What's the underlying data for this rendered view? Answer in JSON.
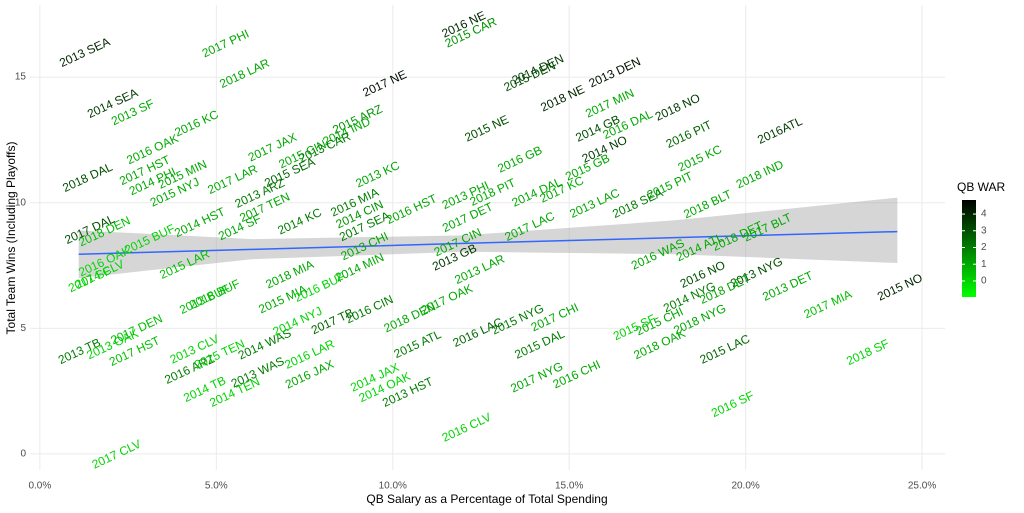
{
  "chart_data": {
    "type": "scatter",
    "xlabel": "QB Salary as a Percentage of Total Spending",
    "ylabel": "Total Team Wins (Including Playoffs)",
    "xlim": [
      -0.28,
      25.65
    ],
    "ylim": [
      -0.64,
      17.87
    ],
    "xticks": [
      {
        "value": 0,
        "label": "0.0%"
      },
      {
        "value": 5,
        "label": "5.0%"
      },
      {
        "value": 10,
        "label": "10.0%"
      },
      {
        "value": 15,
        "label": "15.0%"
      },
      {
        "value": 20,
        "label": "20.0%"
      },
      {
        "value": 25,
        "label": "25.0%"
      }
    ],
    "yticks": [
      0,
      5,
      10,
      15
    ],
    "grid": true,
    "labels": [
      "2013 SEA",
      "2014 SEA",
      "2013 SF",
      "2017 PHI",
      "2018 LAR",
      "2016 NE",
      "2015 CAR",
      "2017 NE",
      "2015 DEN",
      "2014 DEN",
      "2013 DEN",
      "2018 NE",
      "2017 MIN",
      "2018 NO",
      "2015 NE",
      "2014 GB",
      "2016 DAL",
      "2016 PIT",
      "2016ATL",
      "2015 ARZ",
      "2014 IND",
      "2016 KC",
      "2016 OAK",
      "2017 HST",
      "2015 MIN",
      "2014 PHI",
      "2018 DAL",
      "2015 NYJ",
      "2017 JAX",
      "2015 CIN",
      "2017 LAR",
      "2015 SEA",
      "2013 CAR",
      "2013 ARZ",
      "2013 KC",
      "2017 TEN",
      "2016 MIA",
      "2016 HST",
      "2013 PHI",
      "2016 GB",
      "2014 DAL",
      "2018 PIT",
      "2015 GB",
      "2017 KC",
      "2013 LAC",
      "2015 PIT",
      "2015 KC",
      "2018 IND",
      "2018 BLT",
      "2018 SEA",
      "2017 DET",
      "2017 SEA",
      "2017 DAL",
      "2018 DEN",
      "2015 BUF",
      "2014 HST",
      "2014 SF",
      "2014 KC",
      "2014 CIN",
      "2013 CHI",
      "2013 GB",
      "2017 CIN",
      "2017 LAC",
      "2016 WAS",
      "2018 DET",
      "2017 BLT",
      "2014 ATL",
      "2016 OAK",
      "2014 CLV",
      "2017 SF",
      "2015 LAR",
      "2014 MIN",
      "2018 MIA",
      "2018 BUF",
      "2013 BUF",
      "2015 MIA",
      "2016 BUF",
      "2013 LAR",
      "2013 NYG",
      "2016 NO",
      "2015 NO",
      "2013 DET",
      "2017 MIA",
      "2018 SF",
      "2015 LAC",
      "2016 SF",
      "2018 DET",
      "2014 NYG",
      "2018 NYG",
      "2015 CHI",
      "2018 OAK",
      "2015 SF",
      "2017 TB",
      "2016 CIN",
      "2018 DEN",
      "2017 OAK",
      "2016 LAC",
      "2015 NYG",
      "2017 CHI",
      "2015 DAL",
      "2016 CHI",
      "2017 NYG",
      "2013 HST",
      "2016 CLV",
      "2017 CLV",
      "2013 TB",
      "2013 OAK",
      "2017 DEN",
      "2017 HST",
      "2013 CLV",
      "2016 ARZ",
      "2014 TB",
      "2014 TEN",
      "2013 WAS",
      "2016 LAR",
      "2016 JAX",
      "2014 WAS",
      "2015 TEN",
      "2014 NYJ",
      "2014 JAX",
      "2015 ATL",
      "2014 OAK",
      "2014 NO"
    ],
    "x": [
      1.28,
      2.07,
      2.64,
      5.27,
      5.81,
      12.02,
      12.22,
      9.78,
      13.89,
      14.12,
      16.3,
      14.82,
      16.16,
      18.08,
      12.67,
      15.82,
      16.67,
      18.4,
      20.98,
      9.01,
      8.7,
      4.45,
      3.2,
      2.98,
      4.05,
      3.2,
      1.36,
      3.83,
      6.6,
      7.45,
      5.47,
      7.09,
      8.08,
      6.24,
      9.58,
      6.38,
      8.93,
      10.54,
      12.07,
      13.61,
      14.09,
      12.84,
      15.53,
      14.8,
      15.73,
      17.86,
      18.71,
      20.41,
      18.93,
      16.95,
      12.13,
      9.21,
      1.42,
      1.84,
      3.12,
      4.54,
      5.67,
      7.37,
      9.07,
      9.21,
      11.76,
      11.85,
      13.89,
      17.52,
      19.78,
      20.63,
      18.71,
      1.84,
      1.7,
      1.42,
      4.11,
      9.07,
      7.09,
      4.96,
      4.68,
      6.89,
      7.94,
      12.47,
      20.32,
      18.79,
      24.38,
      21.2,
      22.34,
      23.47,
      19.42,
      19.64,
      19.42,
      18.42,
      18.71,
      17.57,
      17.57,
      16.86,
      8.3,
      9.35,
      10.49,
      11.54,
      12.42,
      13.55,
      14.6,
      14.17,
      15.22,
      14.09,
      10.43,
      12.1,
      2.18,
      1.13,
      2.07,
      2.75,
      2.69,
      4.39,
      4.25,
      4.68,
      5.53,
      6.18,
      7.65,
      7.65,
      6.38,
      5.1,
      7.31,
      9.5,
      10.71,
      9.78,
      16.01
    ],
    "y": [
      15.96,
      13.93,
      13.57,
      16.31,
      15.12,
      17.07,
      16.75,
      14.72,
      15.0,
      15.28,
      15.16,
      14.13,
      13.93,
      13.77,
      12.93,
      12.93,
      13.09,
      12.69,
      12.85,
      13.29,
      12.81,
      13.13,
      12.1,
      11.26,
      11.1,
      10.82,
      10.98,
      10.39,
      12.18,
      11.9,
      10.9,
      11.18,
      12.18,
      10.35,
      11.1,
      9.79,
      9.99,
      9.71,
      10.27,
      11.7,
      10.39,
      10.39,
      11.38,
      10.5,
      9.95,
      10.66,
      11.74,
      11.1,
      9.91,
      9.95,
      9.39,
      9.03,
      8.91,
      8.83,
      8.52,
      9.19,
      8.99,
      9.23,
      9.51,
      8.24,
      7.8,
      8.4,
      9.03,
      7.92,
      8.64,
      8.99,
      8.2,
      7.64,
      7.12,
      6.92,
      7.52,
      7.4,
      7.12,
      6.33,
      6.13,
      6.13,
      6.61,
      7.32,
      7.2,
      7.12,
      6.61,
      6.65,
      5.93,
      4.02,
      4.14,
      1.95,
      6.53,
      6.21,
      5.33,
      5.25,
      4.34,
      5.01,
      5.25,
      5.73,
      5.41,
      6.13,
      4.81,
      5.33,
      5.41,
      4.34,
      3.14,
      3.02,
      2.43,
      1.03,
      -0.04,
      4.06,
      4.34,
      4.93,
      4.06,
      4.14,
      3.34,
      2.55,
      2.43,
      3.22,
      3.94,
      3.14,
      4.34,
      3.94,
      5.25,
      3.02,
      4.34,
      2.63,
      12.1
    ],
    "color_values": [
      4,
      3.5,
      1,
      1,
      1,
      4,
      1.5,
      4.5,
      3,
      3.5,
      4.5,
      4,
      1,
      3.5,
      3,
      3,
      1,
      2.5,
      3.5,
      1.5,
      1,
      1,
      1,
      1,
      1,
      1,
      3,
      1,
      1,
      1,
      1,
      2.5,
      2,
      2,
      1,
      1,
      2,
      1,
      1,
      1,
      1,
      1,
      1,
      1,
      1,
      1,
      1,
      1,
      1,
      2,
      1,
      2,
      3,
      0.5,
      0,
      1,
      1,
      2,
      1.5,
      1,
      3.5,
      1,
      1,
      1,
      1,
      1,
      1,
      0,
      0,
      0,
      0.5,
      1,
      1,
      0.5,
      0.5,
      1,
      0,
      1,
      3,
      3,
      4,
      1,
      0.5,
      0,
      2.5,
      0,
      1,
      2,
      1,
      1,
      1,
      0,
      2.5,
      2,
      1,
      1,
      2.5,
      2,
      1,
      2,
      1,
      1,
      2,
      0,
      0,
      2,
      0,
      0.5,
      0.5,
      0,
      2,
      0,
      0,
      2,
      0,
      1,
      2,
      0,
      0,
      0,
      2,
      0,
      3.5
    ],
    "trend": {
      "color": "#3366ff",
      "x": [
        1.1,
        6,
        12,
        18,
        24.3
      ],
      "y": [
        7.95,
        8.14,
        8.38,
        8.61,
        8.85
      ],
      "lower": [
        7.0,
        7.75,
        8.05,
        7.95,
        7.6
      ],
      "upper": [
        8.9,
        8.55,
        8.7,
        9.3,
        10.2
      ]
    },
    "color_scale": {
      "title": "QB WAR",
      "low": "#00ff00",
      "high": "#000000",
      "limits": [
        -0.96,
        4.84
      ],
      "ticks": [
        0,
        1,
        2,
        3,
        4
      ]
    }
  }
}
